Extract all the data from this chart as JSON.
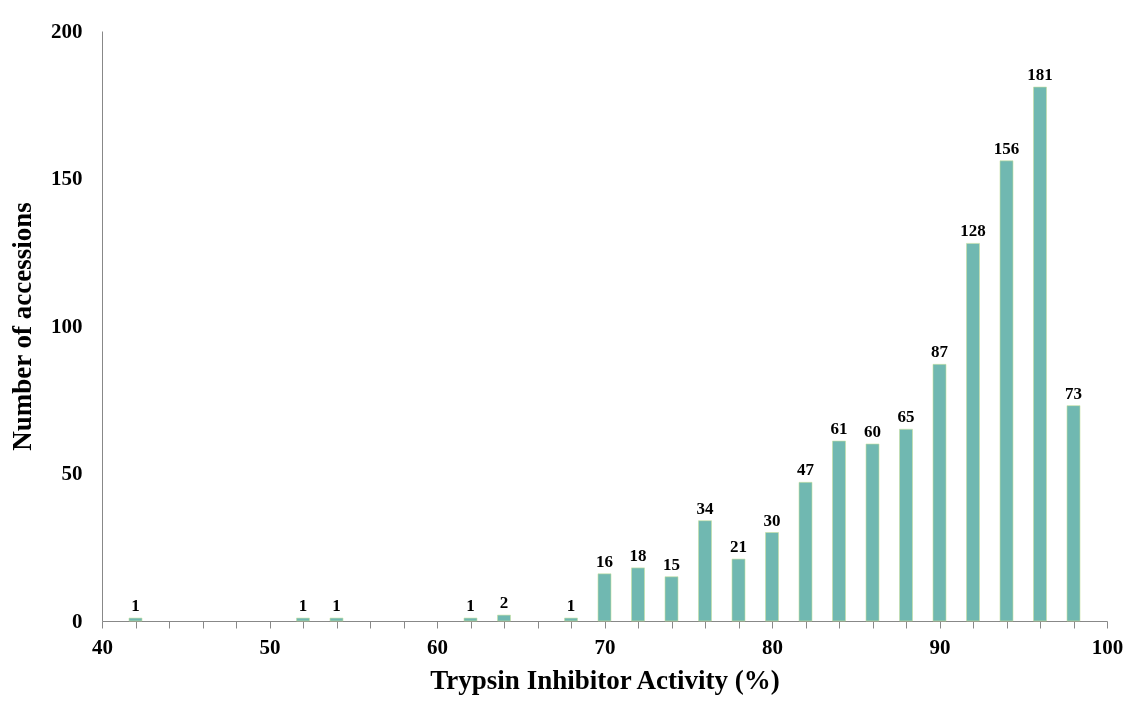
{
  "chart_data": {
    "type": "bar",
    "xlabel": "Trypsin Inhibitor Activity (%)",
    "ylabel": "Number of accessions",
    "x": [
      42,
      52,
      54,
      62,
      64,
      68,
      70,
      72,
      74,
      76,
      78,
      80,
      82,
      84,
      86,
      88,
      90,
      92,
      94,
      96,
      98
    ],
    "values": [
      1,
      1,
      1,
      1,
      2,
      1,
      16,
      18,
      15,
      34,
      21,
      30,
      47,
      61,
      60,
      65,
      87,
      128,
      156,
      181,
      73
    ],
    "color": "#70b8b1",
    "data_labels": true,
    "grid": false,
    "xlim": [
      40,
      100
    ],
    "xticks": [
      40,
      {
        "value": 42,
        "label": null
      },
      {
        "value": 44,
        "label": null
      },
      {
        "value": 46,
        "label": null
      },
      {
        "value": 48,
        "label": null
      },
      50,
      {
        "value": 52,
        "label": null
      },
      {
        "value": 54,
        "label": null
      },
      {
        "value": 56,
        "label": null
      },
      {
        "value": 58,
        "label": null
      },
      60,
      {
        "value": 62,
        "label": null
      },
      {
        "value": 64,
        "label": null
      },
      {
        "value": 66,
        "label": null
      },
      {
        "value": 68,
        "label": null
      },
      70,
      {
        "value": 72,
        "label": null
      },
      {
        "value": 74,
        "label": null
      },
      {
        "value": 76,
        "label": null
      },
      {
        "value": 78,
        "label": null
      },
      80,
      {
        "value": 82,
        "label": null
      },
      {
        "value": 84,
        "label": null
      },
      {
        "value": 86,
        "label": null
      },
      {
        "value": 88,
        "label": null
      },
      90,
      {
        "value": 92,
        "label": null
      },
      {
        "value": 94,
        "label": null
      },
      {
        "value": 96,
        "label": null
      },
      {
        "value": 98,
        "label": null
      },
      100
    ],
    "ylim": [
      0,
      200
    ],
    "yticks": [
      0,
      50,
      100,
      150,
      200
    ]
  }
}
